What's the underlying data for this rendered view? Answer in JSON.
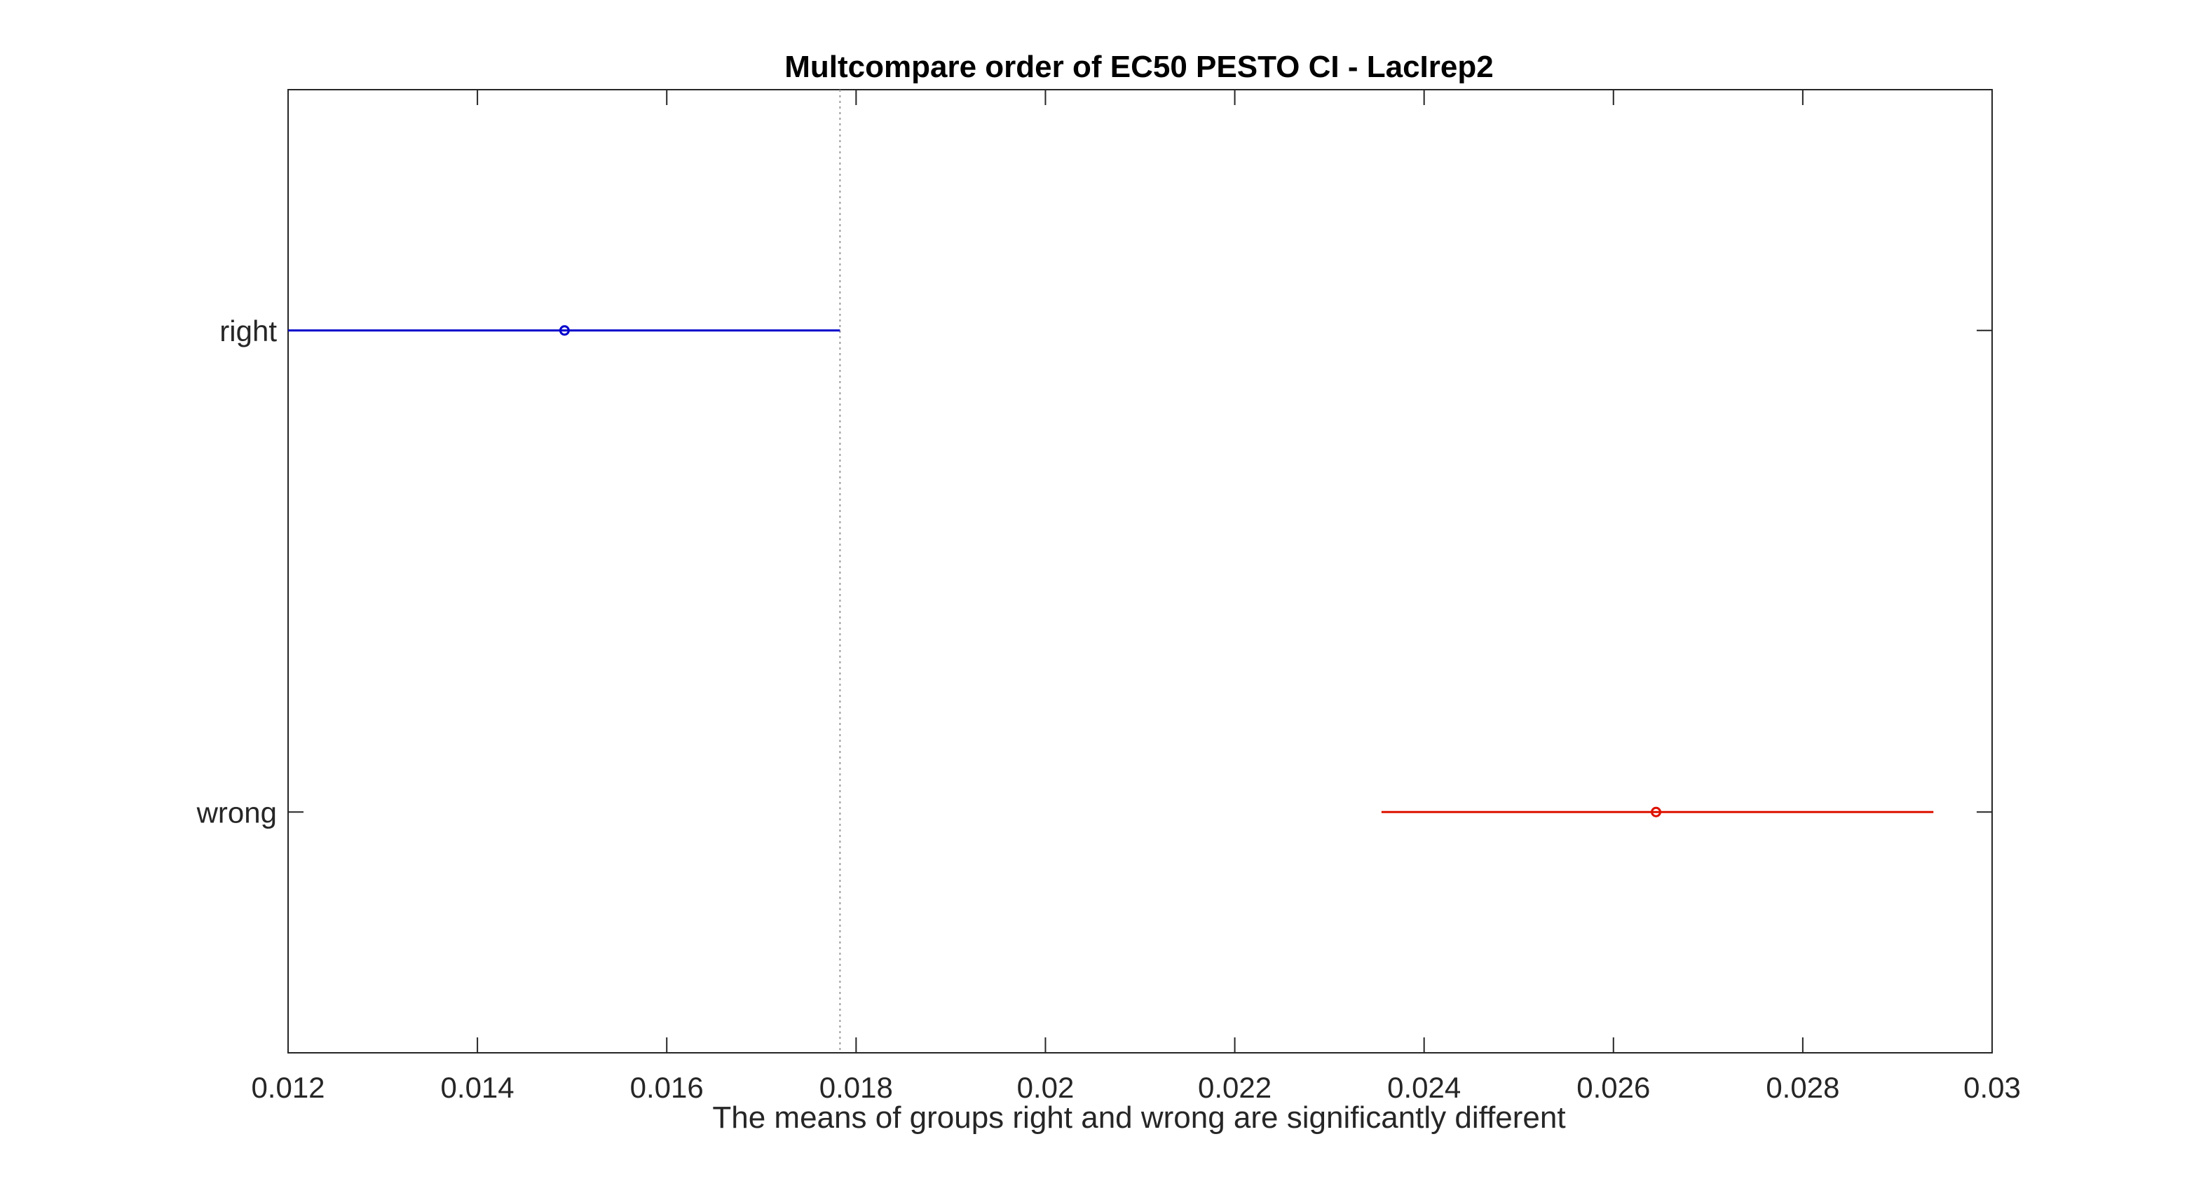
{
  "chart_data": {
    "type": "scatter",
    "title": "Multcompare order of EC50 PESTO CI - LacIrep2",
    "xlabel": "The means of groups right and wrong are significantly different",
    "ylabel": "",
    "xlim": [
      0.012,
      0.03
    ],
    "xticks": [
      0.012,
      0.014,
      0.016,
      0.018,
      0.02,
      0.022,
      0.024,
      0.026,
      0.028,
      0.03
    ],
    "xtick_labels": [
      "0.012",
      "0.014",
      "0.016",
      "0.018",
      "0.02",
      "0.022",
      "0.024",
      "0.026",
      "0.028",
      "0.03"
    ],
    "categories": [
      "right",
      "wrong"
    ],
    "reference_line_x": 0.01783,
    "grid": false,
    "legend": "none",
    "series": [
      {
        "category": "right",
        "mean": 0.01492,
        "ci_low": 0.012,
        "ci_high": 0.01783,
        "color": "#0000cc"
      },
      {
        "category": "wrong",
        "mean": 0.02645,
        "ci_low": 0.02355,
        "ci_high": 0.02938,
        "color": "#dd1100"
      }
    ]
  }
}
